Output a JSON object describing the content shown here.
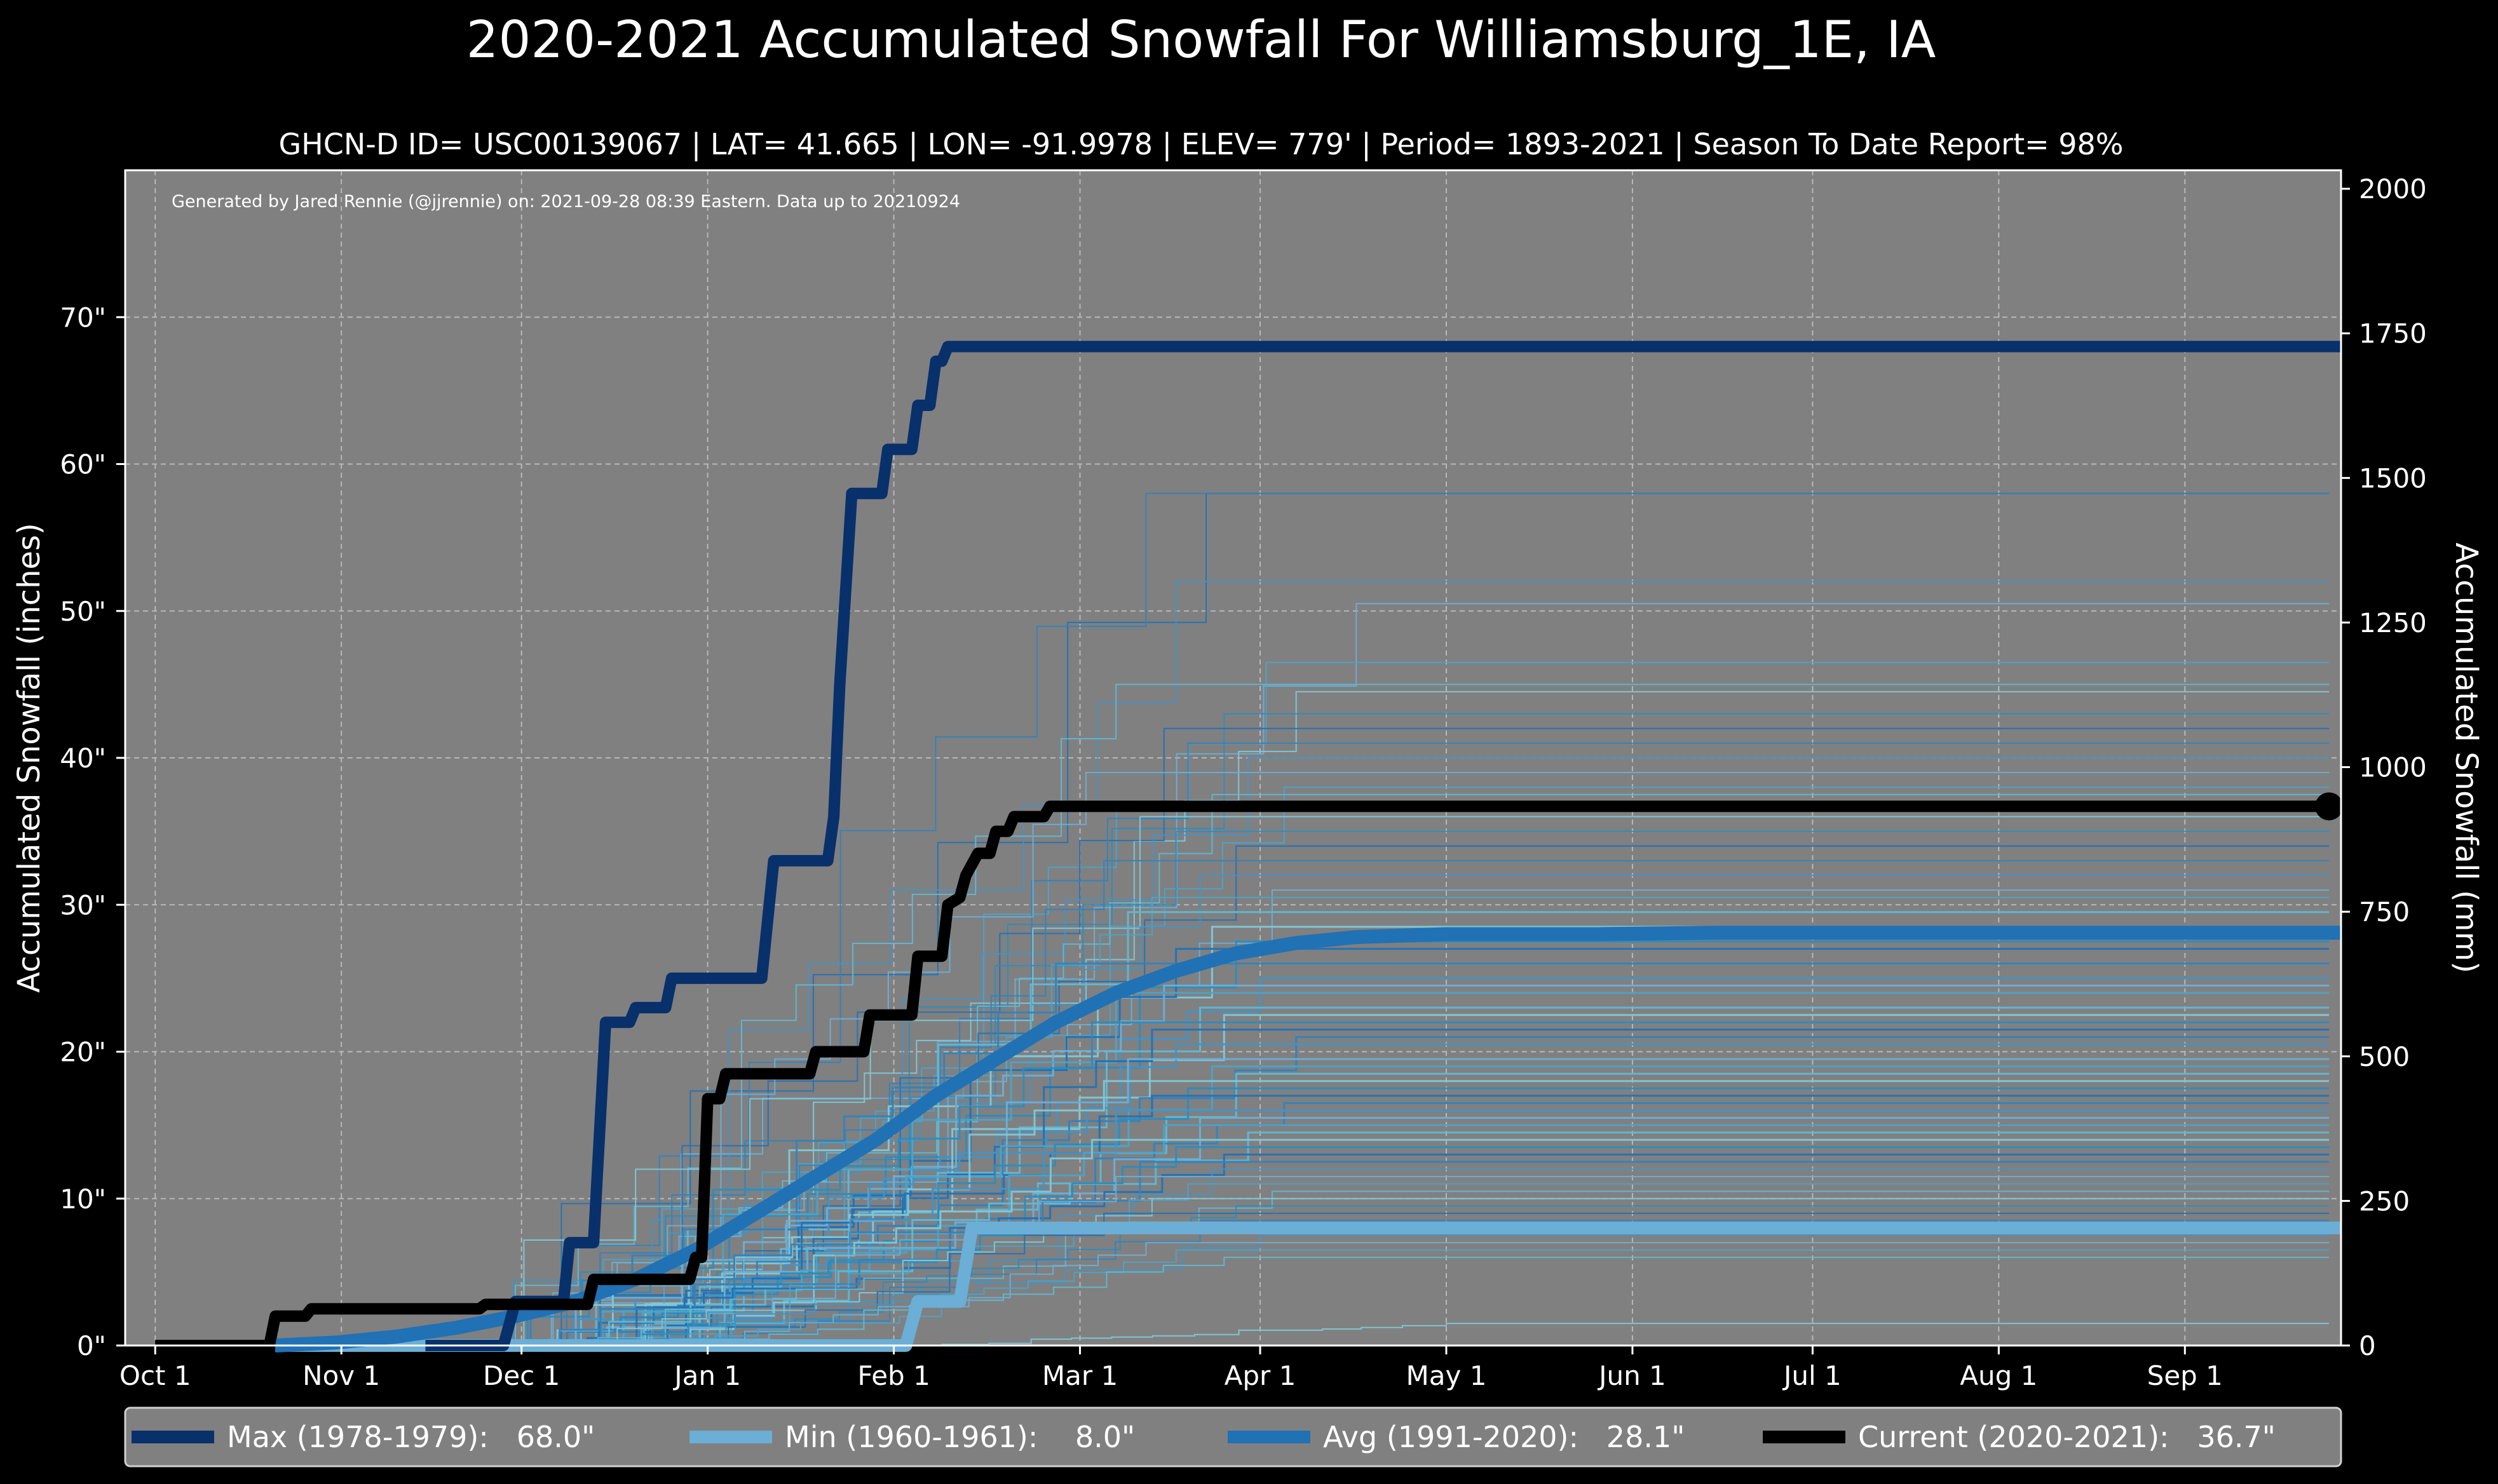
{
  "chart_data": {
    "type": "line",
    "title": "2020-2021 Accumulated Snowfall For Williamsburg_1E, IA",
    "subtitle": "GHCN-D ID= USC00139067 | LAT= 41.665 | LON= -91.9978 | ELEV= 779' | Period= 1893-2021 | Season To Date Report= 98%",
    "credit": "Generated by Jared Rennie (@jjrennie) on: 2021-09-28 08:39 Eastern. Data up to 20210924",
    "ylabel": "Accumulated Snowfall (inches)",
    "ylabel_right": "Accumulated Snowfall (mm)",
    "xlim": [
      -5,
      364
    ],
    "ylim": [
      0,
      80
    ],
    "ylim_right": [
      0,
      2032
    ],
    "grid": true,
    "x_ticks": [
      {
        "day": 0,
        "label": "Oct 1"
      },
      {
        "day": 31,
        "label": "Nov 1"
      },
      {
        "day": 61,
        "label": "Dec 1"
      },
      {
        "day": 92,
        "label": "Jan 1"
      },
      {
        "day": 123,
        "label": "Feb 1"
      },
      {
        "day": 154,
        "label": "Mar 1"
      },
      {
        "day": 184,
        "label": "Apr 1"
      },
      {
        "day": 215,
        "label": "May 1"
      },
      {
        "day": 246,
        "label": "Jun 1"
      },
      {
        "day": 276,
        "label": "Jul 1"
      },
      {
        "day": 307,
        "label": "Aug 1"
      },
      {
        "day": 338,
        "label": "Sep 1"
      }
    ],
    "y_ticks": [
      {
        "value": 0,
        "label": "0\""
      },
      {
        "value": 10,
        "label": "10\""
      },
      {
        "value": 20,
        "label": "20\""
      },
      {
        "value": 30,
        "label": "30\""
      },
      {
        "value": 40,
        "label": "40\""
      },
      {
        "value": 50,
        "label": "50\""
      },
      {
        "value": 60,
        "label": "60\""
      },
      {
        "value": 70,
        "label": "70\""
      }
    ],
    "y_ticks_right": [
      {
        "value": 0,
        "label": "0"
      },
      {
        "value": 250,
        "label": "250"
      },
      {
        "value": 500,
        "label": "500"
      },
      {
        "value": 750,
        "label": "750"
      },
      {
        "value": 1000,
        "label": "1000"
      },
      {
        "value": 1250,
        "label": "1250"
      },
      {
        "value": 1500,
        "label": "1500"
      },
      {
        "value": 1750,
        "label": "1750"
      },
      {
        "value": 2000,
        "label": "2000"
      }
    ],
    "background_years": {
      "description": "thin step lines, one per historical season",
      "finals": [
        58,
        58,
        52,
        50.5,
        46.5,
        45,
        44.5,
        43,
        42,
        41,
        40,
        39,
        38,
        37.5,
        36,
        35,
        34,
        33,
        32,
        31,
        30.5,
        29.5,
        28.5,
        27.5,
        27,
        26,
        25,
        24.5,
        24,
        23,
        22.5,
        22,
        21.5,
        21,
        20.5,
        19.5,
        19,
        18.5,
        18,
        17.5,
        17,
        16.5,
        16,
        15.5,
        15,
        14.5,
        14,
        13.5,
        13,
        12.5,
        12,
        11.5,
        11,
        10.5,
        10,
        9.5,
        9,
        8.5,
        7.5,
        7,
        6.5,
        6,
        1.5
      ],
      "starts": [
        40,
        50,
        55,
        60,
        65,
        45,
        70,
        75,
        58,
        62,
        48,
        52,
        68,
        73,
        42,
        57,
        63,
        80,
        66,
        54,
        71,
        59,
        46,
        64,
        77,
        53,
        61,
        69,
        56,
        74,
        67,
        51,
        78,
        60,
        72,
        49,
        65,
        83,
        58,
        70,
        62,
        55,
        76,
        68,
        64,
        57,
        80,
        71,
        63,
        59,
        85,
        66,
        73,
        61,
        69,
        75,
        78,
        82,
        67,
        90,
        86,
        79,
        120
      ],
      "ends": [
        175,
        165,
        170,
        200,
        185,
        160,
        190,
        178,
        168,
        172,
        182,
        155,
        188,
        176,
        164,
        170,
        180,
        158,
        174,
        186,
        166,
        162,
        176,
        180,
        170,
        150,
        184,
        168,
        160,
        174,
        178,
        156,
        166,
        190,
        170,
        162,
        176,
        180,
        158,
        172,
        166,
        188,
        160,
        174,
        168,
        182,
        156,
        170,
        178,
        164,
        176,
        160,
        172,
        186,
        166,
        180,
        158,
        174,
        184,
        165,
        170,
        178,
        215
      ]
    },
    "series": [
      {
        "name": "Max (1978-1979)",
        "final": 68.0,
        "color": "#08306b",
        "legend": "Max (1978-1979):   68.0\"",
        "points": [
          [
            45,
            0
          ],
          [
            58,
            0
          ],
          [
            60,
            3
          ],
          [
            68,
            3
          ],
          [
            69,
            7
          ],
          [
            73,
            7
          ],
          [
            75,
            22
          ],
          [
            79,
            22
          ],
          [
            80,
            23
          ],
          [
            85,
            23
          ],
          [
            86,
            25
          ],
          [
            101,
            25
          ],
          [
            103,
            33
          ],
          [
            112,
            33
          ],
          [
            113,
            36
          ],
          [
            114,
            45
          ],
          [
            116,
            58
          ],
          [
            121,
            58
          ],
          [
            122,
            61
          ],
          [
            126,
            61
          ],
          [
            127,
            64
          ],
          [
            129,
            64
          ],
          [
            130,
            67
          ],
          [
            131,
            67
          ],
          [
            132,
            68
          ],
          [
            364,
            68
          ]
        ]
      },
      {
        "name": "Min (1960-1961)",
        "final": 8.0,
        "color": "#6baed6",
        "legend": "Min (1960-1961):    8.0\"",
        "points": [
          [
            20,
            0
          ],
          [
            125,
            0
          ],
          [
            127,
            3
          ],
          [
            134,
            3
          ],
          [
            136,
            8
          ],
          [
            364,
            8
          ]
        ]
      },
      {
        "name": "Avg (1991-2020)",
        "final": 28.1,
        "color": "#2171b5",
        "legend": "Avg (1991-2020):   28.1\"",
        "points": [
          [
            20,
            0
          ],
          [
            30,
            0.2
          ],
          [
            40,
            0.6
          ],
          [
            50,
            1.2
          ],
          [
            60,
            2
          ],
          [
            70,
            3
          ],
          [
            80,
            4.5
          ],
          [
            90,
            6.5
          ],
          [
            100,
            9
          ],
          [
            110,
            11.5
          ],
          [
            120,
            14
          ],
          [
            130,
            17
          ],
          [
            140,
            19.5
          ],
          [
            150,
            22
          ],
          [
            160,
            24
          ],
          [
            170,
            25.5
          ],
          [
            180,
            26.7
          ],
          [
            190,
            27.4
          ],
          [
            200,
            27.8
          ],
          [
            215,
            28
          ],
          [
            240,
            28
          ],
          [
            260,
            28.1
          ],
          [
            364,
            28.1
          ]
        ]
      },
      {
        "name": "Current (2020-2021)",
        "final": 36.7,
        "color": "#000000",
        "legend": "Current (2020-2021):   36.7\"",
        "points": [
          [
            0,
            0
          ],
          [
            19,
            0
          ],
          [
            20,
            2
          ],
          [
            25,
            2
          ],
          [
            26,
            2.5
          ],
          [
            54,
            2.5
          ],
          [
            55,
            2.8
          ],
          [
            72,
            2.8
          ],
          [
            73,
            4.5
          ],
          [
            89,
            4.5
          ],
          [
            90,
            6
          ],
          [
            91,
            6
          ],
          [
            92,
            16.8
          ],
          [
            94,
            16.8
          ],
          [
            95,
            18.5
          ],
          [
            109,
            18.5
          ],
          [
            110,
            20
          ],
          [
            118,
            20
          ],
          [
            119,
            22.5
          ],
          [
            126,
            22.5
          ],
          [
            127,
            26.5
          ],
          [
            131,
            26.5
          ],
          [
            132,
            30
          ],
          [
            134,
            30.5
          ],
          [
            135,
            32
          ],
          [
            137,
            33.5
          ],
          [
            139,
            33.5
          ],
          [
            140,
            35
          ],
          [
            142,
            35
          ],
          [
            143,
            36
          ],
          [
            148,
            36
          ],
          [
            149,
            36.7
          ],
          [
            362,
            36.7
          ]
        ]
      }
    ],
    "legend": {
      "placement": "bottom"
    }
  }
}
